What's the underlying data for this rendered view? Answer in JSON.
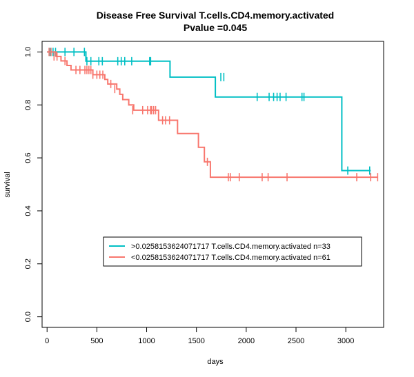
{
  "chart_data": {
    "type": "line",
    "title": "Disease Free Survival T.cells.CD4.memory.activated",
    "subtitle": "Pvalue =0.045",
    "xlabel": "days",
    "ylabel": "survival",
    "xlim": [
      -50,
      3380
    ],
    "ylim": [
      -0.04,
      1.04
    ],
    "xticks": [
      0,
      500,
      1000,
      1500,
      2000,
      2500,
      3000
    ],
    "yticks": [
      0.0,
      0.2,
      0.4,
      0.6,
      0.8,
      1.0
    ],
    "ytick_labels": [
      "0.0",
      "0.2",
      "0.4",
      "0.6",
      "0.8",
      "1.0"
    ],
    "grid": false,
    "legend_position": "lower-center",
    "series": [
      {
        "name": ">0.0258153624071717 T.cells.CD4.memory.activated n=33",
        "color": "#00BFC4",
        "steps": [
          [
            0,
            1.0
          ],
          [
            390,
            1.0
          ],
          [
            390,
            0.965
          ],
          [
            1235,
            0.965
          ],
          [
            1235,
            0.905
          ],
          [
            1690,
            0.905
          ],
          [
            1690,
            0.83
          ],
          [
            2960,
            0.83
          ],
          [
            2960,
            0.552
          ],
          [
            3250,
            0.552
          ]
        ],
        "censor_x": [
          30,
          60,
          85,
          180,
          270,
          375,
          400,
          440,
          520,
          555,
          710,
          745,
          780,
          850,
          1030,
          1040,
          1745,
          1775,
          2110,
          2230,
          2275,
          2310,
          2340,
          2400,
          2560,
          2580,
          3020,
          3240
        ],
        "censor_y": [
          1.0,
          1.0,
          1.0,
          1.0,
          1.0,
          1.0,
          0.965,
          0.965,
          0.965,
          0.965,
          0.965,
          0.965,
          0.965,
          0.965,
          0.965,
          0.965,
          0.905,
          0.905,
          0.83,
          0.83,
          0.83,
          0.83,
          0.83,
          0.83,
          0.83,
          0.83,
          0.552,
          0.552
        ]
      },
      {
        "name": "<0.0258153624071717 T.cells.CD4.memory.activated n=61",
        "color": "#F8766D",
        "steps": [
          [
            0,
            1.0
          ],
          [
            90,
            1.0
          ],
          [
            90,
            0.983
          ],
          [
            140,
            0.983
          ],
          [
            140,
            0.966
          ],
          [
            200,
            0.966
          ],
          [
            200,
            0.949
          ],
          [
            240,
            0.949
          ],
          [
            240,
            0.932
          ],
          [
            460,
            0.932
          ],
          [
            460,
            0.914
          ],
          [
            580,
            0.914
          ],
          [
            580,
            0.896
          ],
          [
            610,
            0.896
          ],
          [
            610,
            0.879
          ],
          [
            700,
            0.879
          ],
          [
            700,
            0.86
          ],
          [
            730,
            0.86
          ],
          [
            730,
            0.84
          ],
          [
            760,
            0.84
          ],
          [
            760,
            0.82
          ],
          [
            820,
            0.82
          ],
          [
            820,
            0.8
          ],
          [
            870,
            0.8
          ],
          [
            870,
            0.78
          ],
          [
            1120,
            0.78
          ],
          [
            1120,
            0.742
          ],
          [
            1310,
            0.742
          ],
          [
            1310,
            0.692
          ],
          [
            1520,
            0.692
          ],
          [
            1520,
            0.64
          ],
          [
            1580,
            0.64
          ],
          [
            1580,
            0.585
          ],
          [
            1640,
            0.585
          ],
          [
            1640,
            0.527
          ],
          [
            3320,
            0.527
          ]
        ],
        "censor_x": [
          20,
          40,
          70,
          100,
          180,
          290,
          330,
          380,
          400,
          420,
          440,
          460,
          500,
          530,
          560,
          640,
          680,
          860,
          960,
          1010,
          1040,
          1050,
          1070,
          1090,
          1160,
          1190,
          1230,
          1610,
          1820,
          1840,
          1930,
          2160,
          2220,
          2410,
          3110,
          3250,
          3320
        ],
        "censor_y": [
          1.0,
          1.0,
          0.983,
          0.983,
          0.966,
          0.932,
          0.932,
          0.932,
          0.932,
          0.932,
          0.932,
          0.914,
          0.914,
          0.914,
          0.914,
          0.879,
          0.86,
          0.78,
          0.78,
          0.78,
          0.78,
          0.78,
          0.78,
          0.78,
          0.742,
          0.742,
          0.742,
          0.585,
          0.527,
          0.527,
          0.527,
          0.527,
          0.527,
          0.527,
          0.527,
          0.527,
          0.527
        ]
      }
    ]
  }
}
